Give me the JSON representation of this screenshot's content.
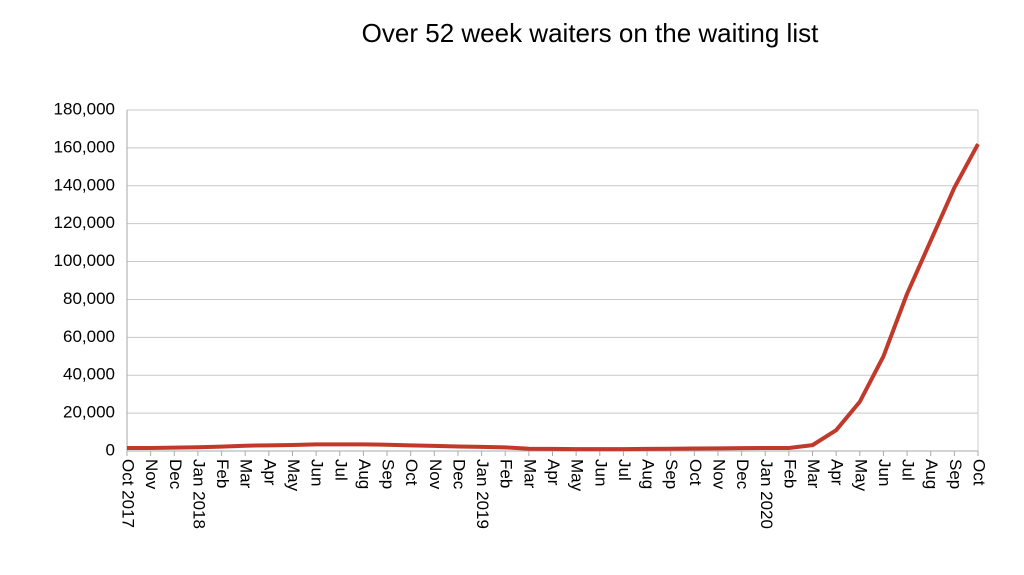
{
  "chart_data": {
    "type": "line",
    "title": "Over 52 week waiters on the waiting list",
    "categories": [
      "Oct 2017",
      "Nov",
      "Dec",
      "Jan 2018",
      "Feb",
      "Mar",
      "Apr",
      "May",
      "Jun",
      "Jul",
      "Aug",
      "Sep",
      "Oct",
      "Nov",
      "Dec",
      "Jan 2019",
      "Feb",
      "Mar",
      "Apr",
      "May",
      "Jun",
      "Jul",
      "Aug",
      "Sep",
      "Oct",
      "Nov",
      "Dec",
      "Jan 2020",
      "Feb",
      "Mar",
      "Apr",
      "May",
      "Jun",
      "Jul",
      "Aug",
      "Sep",
      "Oct"
    ],
    "series": [
      {
        "color": "#c0392b",
        "values": [
          1600,
          1600,
          1800,
          2000,
          2300,
          2800,
          3000,
          3200,
          3500,
          3500,
          3500,
          3300,
          3000,
          2700,
          2400,
          2200,
          1900,
          1200,
          1100,
          1000,
          1000,
          1000,
          1100,
          1200,
          1300,
          1400,
          1500,
          1600,
          1600,
          3100,
          11000,
          26000,
          50000,
          83000,
          111000,
          139000,
          162000
        ]
      }
    ],
    "ylim": [
      0,
      180000
    ],
    "yticks": [
      0,
      {
        "value": 20000,
        "label": "20,000"
      },
      {
        "value": 40000,
        "label": "40,000"
      },
      {
        "value": 60000,
        "label": "60,000"
      },
      {
        "value": 80000,
        "label": "80,000"
      },
      {
        "value": 100000,
        "label": "100,000"
      },
      {
        "value": 120000,
        "label": "120,000"
      },
      {
        "value": 140000,
        "label": "140,000"
      },
      {
        "value": 160000,
        "label": "160,000"
      },
      {
        "value": 180000,
        "label": "180,000"
      }
    ],
    "grid": true
  }
}
